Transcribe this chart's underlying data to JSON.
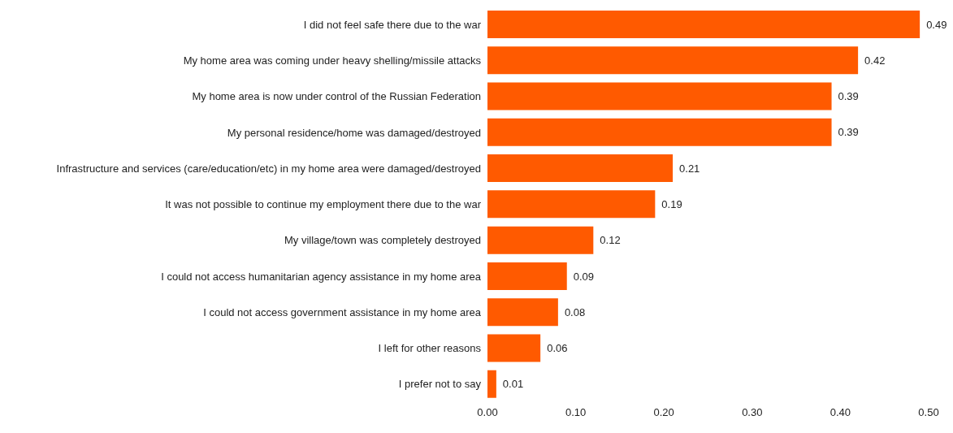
{
  "chart_data": {
    "type": "bar",
    "orientation": "horizontal",
    "categories": [
      "I did not feel safe there due to the war",
      "My home area was coming under heavy shelling/missile attacks",
      "My home area is now under control of the Russian Federation",
      "My personal residence/home was damaged/destroyed",
      "Infrastructure and services (care/education/etc) in my home area were damaged/destroyed",
      "It was not possible to continue my employment there due to the war",
      "My village/town was completely destroyed",
      "I could not access humanitarian agency assistance in my home area",
      "I could not access government assistance in my home area",
      "I left for other reasons",
      "I prefer not to say"
    ],
    "values": [
      0.49,
      0.42,
      0.39,
      0.39,
      0.21,
      0.19,
      0.12,
      0.09,
      0.08,
      0.06,
      0.01
    ],
    "color": "#ff5a00",
    "xlim": [
      0,
      0.5
    ],
    "xticks": [
      {
        "value": 0,
        "label": "0.00"
      },
      {
        "value": 0.1,
        "label": "0.10"
      },
      {
        "value": 0.2,
        "label": "0.20"
      },
      {
        "value": 0.3,
        "label": "0.30"
      },
      {
        "value": 0.4,
        "label": "0.40"
      },
      {
        "value": 0.5,
        "label": "0.50"
      }
    ],
    "data_labels": true,
    "grid": false
  }
}
